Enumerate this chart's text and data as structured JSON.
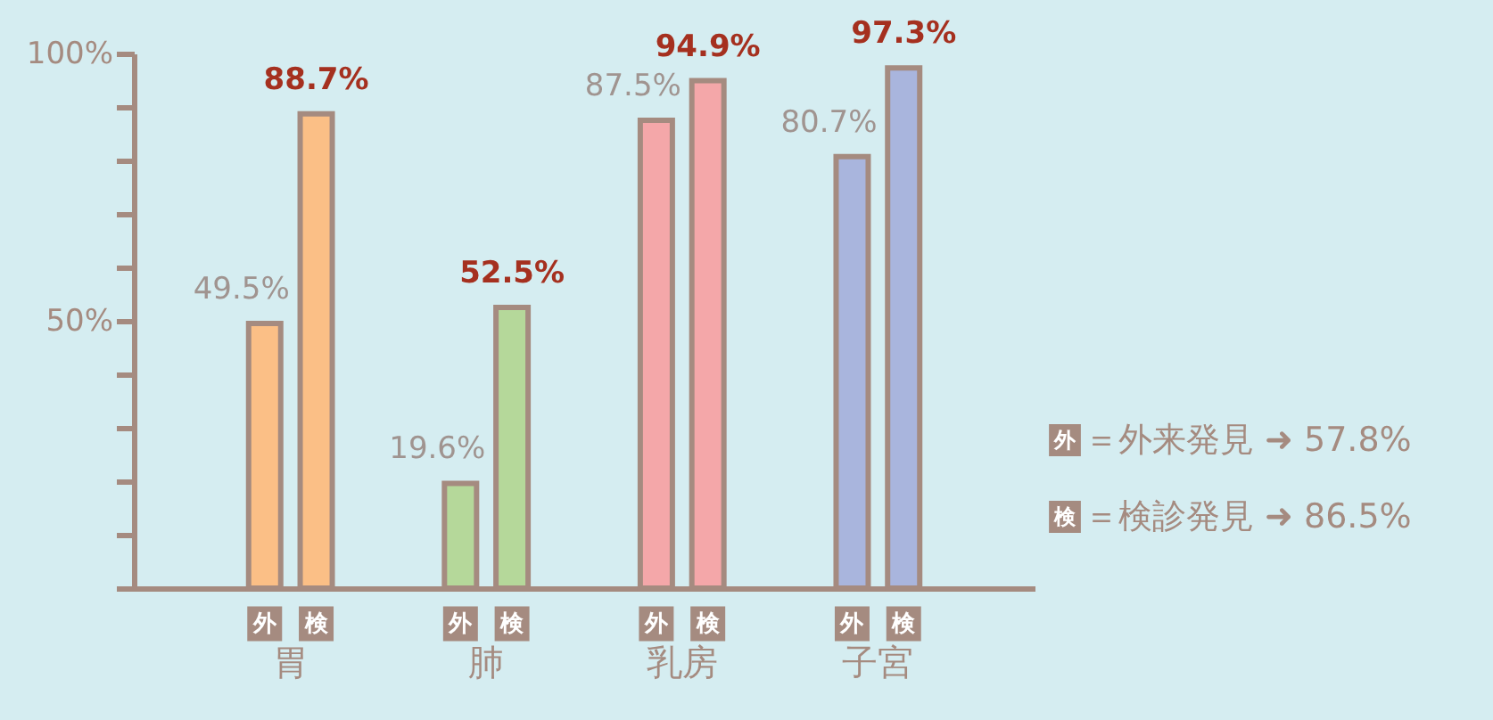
{
  "chart_data": {
    "type": "bar",
    "categories": [
      "胃",
      "肺",
      "乳房",
      "子宮"
    ],
    "series": [
      {
        "name": "外",
        "colors": [
          "#fbbf86",
          "#b5d89a",
          "#f4a7a9",
          "#a9b5dd"
        ],
        "values": [
          49.5,
          19.6,
          87.5,
          80.7
        ],
        "value_labels": [
          "49.5%",
          "19.6%",
          "87.5%",
          "80.7%"
        ]
      },
      {
        "name": "検",
        "colors": [
          "#fbbf86",
          "#b5d89a",
          "#f4a7a9",
          "#a9b5dd"
        ],
        "values": [
          88.7,
          52.5,
          94.9,
          97.3
        ],
        "value_labels": [
          "88.7%",
          "52.5%",
          "94.9%",
          "97.3%"
        ]
      }
    ],
    "ylim": [
      0,
      100
    ],
    "yticks": [
      {
        "value": 0,
        "label": null
      },
      {
        "value": 10,
        "label": null
      },
      {
        "value": 20,
        "label": null
      },
      {
        "value": 30,
        "label": null
      },
      {
        "value": 40,
        "label": null
      },
      {
        "value": 50,
        "label": "50%"
      },
      {
        "value": 60,
        "label": null
      },
      {
        "value": 70,
        "label": null
      },
      {
        "value": 80,
        "label": null
      },
      {
        "value": 90,
        "label": null
      },
      {
        "value": 100,
        "label": "100%"
      }
    ],
    "grid": false,
    "annotations": [
      "＝外来発見 ➜ 57.8%",
      "＝検診発見 ➜ 86.5%"
    ]
  }
}
